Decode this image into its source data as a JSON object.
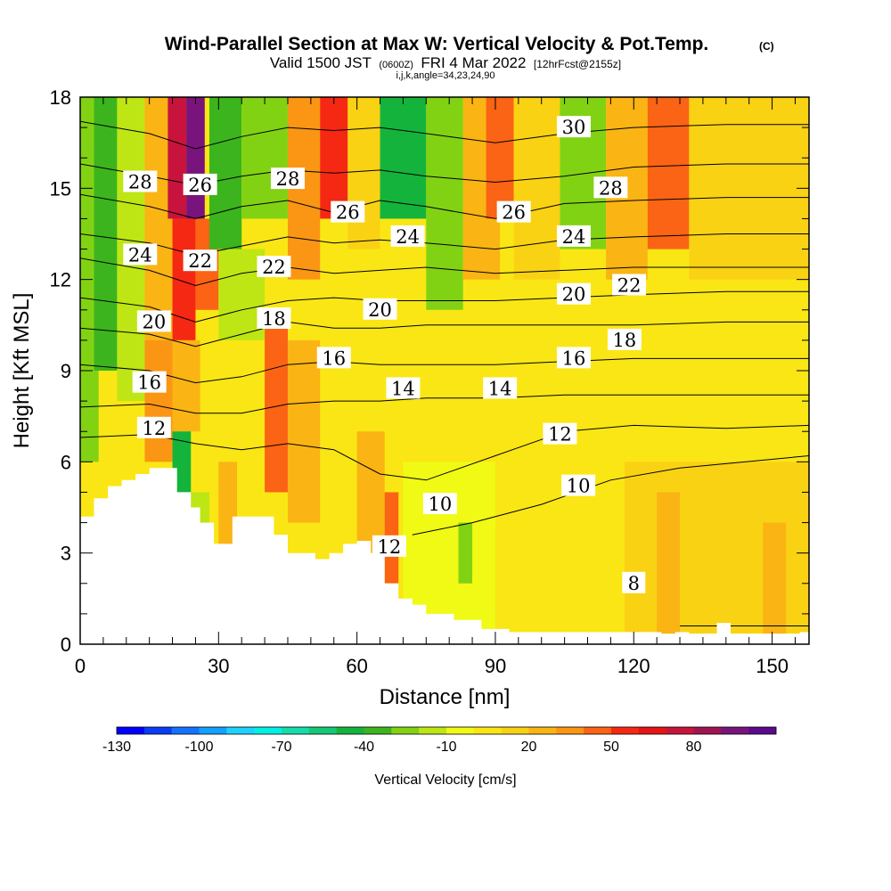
{
  "chart_data": {
    "type": "heatmap",
    "title": "Wind-Parallel Section at Max W: Vertical Velocity & Pot.Temp.",
    "title_mark": "(C)",
    "subtitle_parts": {
      "a": "Valid 1500 JST",
      "b": "(0600Z)",
      "c": "FRI 4 Mar 2022",
      "d": "[12hrFcst@2155z]"
    },
    "subtitle2": "i,j,k,angle=34,23,24,90",
    "xlabel": "Distance [nm]",
    "ylabel": "Height [Kft MSL]",
    "xlim": [
      0,
      158
    ],
    "ylim": [
      0,
      18
    ],
    "x_ticks": [
      0,
      30,
      60,
      90,
      120,
      150
    ],
    "x_tick_labels": [
      "0",
      "30",
      "60",
      "90",
      "120",
      "150"
    ],
    "y_ticks": [
      0,
      3,
      6,
      9,
      12,
      15,
      18
    ],
    "y_tick_labels": [
      "0",
      "3",
      "6",
      "9",
      "12",
      "15",
      "18"
    ],
    "colorbar": {
      "label": "Vertical Velocity [cm/s]",
      "levels": [
        -130,
        -120,
        -110,
        -100,
        -90,
        -80,
        -70,
        -60,
        -50,
        -40,
        -30,
        -20,
        -10,
        0,
        10,
        20,
        30,
        40,
        50,
        60,
        70,
        80,
        90,
        100
      ],
      "tick_values": [
        -130,
        -100,
        -70,
        -40,
        -10,
        20,
        50,
        80
      ],
      "tick_labels": [
        "-130",
        "-100",
        "-70",
        "-40",
        "-10",
        "20",
        "50",
        "80"
      ],
      "colors": [
        "#0000ff",
        "#0a3cf5",
        "#1472ff",
        "#14a0ff",
        "#1ed2ff",
        "#00f0e6",
        "#14dcaa",
        "#14c878",
        "#14b43c",
        "#3cb41e",
        "#82d214",
        "#bee614",
        "#f0fa14",
        "#fae614",
        "#fad214",
        "#fab414",
        "#fa9614",
        "#fa6414",
        "#f52814",
        "#e61414",
        "#c8143c",
        "#a01450",
        "#78147c",
        "#5a0a8c"
      ]
    },
    "terrain_profile": {
      "x": [
        0,
        3,
        3,
        6,
        6,
        9,
        9,
        12,
        12,
        15,
        15,
        21,
        21,
        24,
        24,
        26,
        26,
        29,
        29,
        33,
        33,
        42,
        42,
        45,
        45,
        51,
        51,
        54,
        54,
        57,
        57,
        60,
        60,
        63,
        63,
        66,
        66,
        69,
        69,
        72,
        72,
        75,
        75,
        81,
        81,
        87,
        87,
        93,
        93,
        126,
        126,
        129,
        129,
        132,
        132,
        138,
        138,
        141,
        141,
        156,
        156,
        158
      ],
      "height": [
        4.2,
        4.2,
        4.8,
        4.8,
        5.2,
        5.2,
        5.4,
        5.4,
        5.6,
        5.6,
        5.8,
        5.8,
        5.0,
        5.0,
        4.5,
        4.5,
        4.0,
        4.0,
        3.3,
        3.3,
        4.2,
        4.2,
        3.6,
        3.6,
        3.0,
        3.0,
        2.8,
        2.8,
        3.0,
        3.0,
        3.3,
        3.3,
        3.4,
        3.4,
        3.0,
        3.0,
        2.0,
        2.0,
        1.5,
        1.5,
        1.3,
        1.3,
        1.0,
        1.0,
        0.8,
        0.8,
        0.5,
        0.5,
        0.4,
        0.4,
        0.35,
        0.35,
        0.4,
        0.4,
        0.35,
        0.35,
        0.7,
        0.7,
        0.35,
        0.35,
        0.4,
        0.4
      ]
    },
    "velocity_cells": [
      {
        "x0": 0,
        "x1": 158,
        "y0": 0,
        "y1": 18,
        "value": 5
      },
      {
        "x0": 0,
        "x1": 4,
        "y0": 6,
        "y1": 18,
        "value": -25
      },
      {
        "x0": 3,
        "x1": 8,
        "y0": 9,
        "y1": 18,
        "value": -40
      },
      {
        "x0": 8,
        "x1": 14,
        "y0": 8,
        "y1": 18,
        "value": -15
      },
      {
        "x0": 14,
        "x1": 20,
        "y0": 10,
        "y1": 18,
        "value": 25
      },
      {
        "x0": 19,
        "x1": 23,
        "y0": 14,
        "y1": 18,
        "value": 70
      },
      {
        "x0": 20,
        "x1": 25,
        "y0": 10,
        "y1": 14,
        "value": 55
      },
      {
        "x0": 23,
        "x1": 27,
        "y0": 14,
        "y1": 18,
        "value": 90
      },
      {
        "x0": 25,
        "x1": 30,
        "y0": 11,
        "y1": 14,
        "value": 40
      },
      {
        "x0": 28,
        "x1": 35,
        "y0": 13,
        "y1": 18,
        "value": -40
      },
      {
        "x0": 35,
        "x1": 45,
        "y0": 14,
        "y1": 18,
        "value": -30
      },
      {
        "x0": 30,
        "x1": 40,
        "y0": 10,
        "y1": 13,
        "value": -20
      },
      {
        "x0": 45,
        "x1": 52,
        "y0": 12,
        "y1": 18,
        "value": 30
      },
      {
        "x0": 52,
        "x1": 58,
        "y0": 14,
        "y1": 18,
        "value": 55
      },
      {
        "x0": 58,
        "x1": 65,
        "y0": 13,
        "y1": 18,
        "value": 15
      },
      {
        "x0": 65,
        "x1": 75,
        "y0": 14,
        "y1": 18,
        "value": -45
      },
      {
        "x0": 75,
        "x1": 83,
        "y0": 11,
        "y1": 18,
        "value": -25
      },
      {
        "x0": 83,
        "x1": 91,
        "y0": 12,
        "y1": 18,
        "value": 25
      },
      {
        "x0": 88,
        "x1": 94,
        "y0": 14,
        "y1": 18,
        "value": 45
      },
      {
        "x0": 94,
        "x1": 104,
        "y0": 12,
        "y1": 18,
        "value": 15
      },
      {
        "x0": 104,
        "x1": 114,
        "y0": 13,
        "y1": 18,
        "value": -25
      },
      {
        "x0": 114,
        "x1": 123,
        "y0": 12,
        "y1": 18,
        "value": 20
      },
      {
        "x0": 123,
        "x1": 132,
        "y0": 13,
        "y1": 18,
        "value": 40
      },
      {
        "x0": 132,
        "x1": 158,
        "y0": 12,
        "y1": 18,
        "value": 15
      },
      {
        "x0": 14,
        "x1": 20,
        "y0": 6,
        "y1": 10,
        "value": 35
      },
      {
        "x0": 20,
        "x1": 26,
        "y0": 7,
        "y1": 10,
        "value": 20
      },
      {
        "x0": 20,
        "x1": 24,
        "y0": 3,
        "y1": 7,
        "value": -45
      },
      {
        "x0": 24,
        "x1": 28,
        "y0": 3,
        "y1": 5,
        "value": -20
      },
      {
        "x0": 30,
        "x1": 34,
        "y0": 3,
        "y1": 6,
        "value": 25
      },
      {
        "x0": 40,
        "x1": 45,
        "y0": 5,
        "y1": 11,
        "value": 45
      },
      {
        "x0": 45,
        "x1": 52,
        "y0": 4,
        "y1": 10,
        "value": 25
      },
      {
        "x0": 60,
        "x1": 66,
        "y0": 3,
        "y1": 7,
        "value": 20
      },
      {
        "x0": 66,
        "x1": 69,
        "y0": 2,
        "y1": 5,
        "value": 40
      },
      {
        "x0": 70,
        "x1": 90,
        "y0": 0,
        "y1": 6,
        "value": -5
      },
      {
        "x0": 82,
        "x1": 85,
        "y0": 2,
        "y1": 4,
        "value": -30
      },
      {
        "x0": 95,
        "x1": 118,
        "y0": 0,
        "y1": 5,
        "value": 0
      },
      {
        "x0": 118,
        "x1": 158,
        "y0": 0,
        "y1": 6,
        "value": 10
      },
      {
        "x0": 125,
        "x1": 130,
        "y0": 0,
        "y1": 5,
        "value": 25
      },
      {
        "x0": 148,
        "x1": 153,
        "y0": 0,
        "y1": 4,
        "value": 25
      }
    ],
    "theta_contours": [
      {
        "label": "8",
        "points": [
          [
            130,
            0.6
          ],
          [
            158,
            0.6
          ]
        ]
      },
      {
        "label": "10",
        "points": [
          [
            72,
            3.6
          ],
          [
            85,
            4.0
          ],
          [
            100,
            4.6
          ],
          [
            115,
            5.4
          ],
          [
            130,
            5.8
          ],
          [
            158,
            6.2
          ]
        ]
      },
      {
        "label": "12",
        "points": [
          [
            0,
            6.8
          ],
          [
            15,
            6.9
          ],
          [
            25,
            6.6
          ],
          [
            35,
            6.4
          ],
          [
            45,
            6.6
          ],
          [
            55,
            6.4
          ],
          [
            65,
            5.6
          ],
          [
            75,
            5.4
          ],
          [
            90,
            6.2
          ],
          [
            105,
            7.0
          ],
          [
            120,
            7.2
          ],
          [
            140,
            7.1
          ],
          [
            158,
            7.2
          ]
        ]
      },
      {
        "label": "14",
        "points": [
          [
            0,
            7.8
          ],
          [
            15,
            7.9
          ],
          [
            25,
            7.6
          ],
          [
            35,
            7.6
          ],
          [
            45,
            7.9
          ],
          [
            55,
            8.0
          ],
          [
            65,
            8.0
          ],
          [
            75,
            8.1
          ],
          [
            90,
            8.1
          ],
          [
            105,
            8.2
          ],
          [
            120,
            8.2
          ],
          [
            140,
            8.2
          ],
          [
            158,
            8.2
          ]
        ]
      },
      {
        "label": "16",
        "points": [
          [
            0,
            9.2
          ],
          [
            15,
            9.0
          ],
          [
            25,
            8.6
          ],
          [
            35,
            8.8
          ],
          [
            45,
            9.2
          ],
          [
            55,
            9.3
          ],
          [
            65,
            9.2
          ],
          [
            75,
            9.2
          ],
          [
            90,
            9.2
          ],
          [
            105,
            9.3
          ],
          [
            120,
            9.4
          ],
          [
            140,
            9.4
          ],
          [
            158,
            9.4
          ]
        ]
      },
      {
        "label": "18",
        "points": [
          [
            0,
            10.4
          ],
          [
            15,
            10.2
          ],
          [
            25,
            9.8
          ],
          [
            35,
            10.2
          ],
          [
            45,
            10.6
          ],
          [
            55,
            10.4
          ],
          [
            65,
            10.4
          ],
          [
            75,
            10.5
          ],
          [
            90,
            10.5
          ],
          [
            105,
            10.5
          ],
          [
            120,
            10.5
          ],
          [
            140,
            10.6
          ],
          [
            158,
            10.6
          ]
        ]
      },
      {
        "label": "20",
        "points": [
          [
            0,
            11.4
          ],
          [
            15,
            11.1
          ],
          [
            25,
            10.6
          ],
          [
            35,
            11.0
          ],
          [
            45,
            11.3
          ],
          [
            55,
            11.4
          ],
          [
            65,
            11.3
          ],
          [
            75,
            11.3
          ],
          [
            90,
            11.3
          ],
          [
            105,
            11.4
          ],
          [
            120,
            11.5
          ],
          [
            140,
            11.6
          ],
          [
            158,
            11.6
          ]
        ]
      },
      {
        "label": "22",
        "points": [
          [
            0,
            12.7
          ],
          [
            15,
            12.3
          ],
          [
            25,
            11.8
          ],
          [
            35,
            12.2
          ],
          [
            45,
            12.4
          ],
          [
            55,
            12.2
          ],
          [
            65,
            12.3
          ],
          [
            75,
            12.4
          ],
          [
            90,
            12.2
          ],
          [
            105,
            12.3
          ],
          [
            120,
            12.4
          ],
          [
            140,
            12.4
          ],
          [
            158,
            12.4
          ]
        ]
      },
      {
        "label": "24",
        "points": [
          [
            0,
            13.5
          ],
          [
            15,
            13.2
          ],
          [
            25,
            12.8
          ],
          [
            35,
            13.1
          ],
          [
            45,
            13.4
          ],
          [
            55,
            13.2
          ],
          [
            65,
            13.3
          ],
          [
            75,
            13.2
          ],
          [
            90,
            13.0
          ],
          [
            105,
            13.3
          ],
          [
            120,
            13.4
          ],
          [
            140,
            13.5
          ],
          [
            158,
            13.5
          ]
        ]
      },
      {
        "label": "26",
        "points": [
          [
            0,
            14.8
          ],
          [
            15,
            14.4
          ],
          [
            25,
            14.0
          ],
          [
            35,
            14.4
          ],
          [
            45,
            14.6
          ],
          [
            55,
            14.2
          ],
          [
            65,
            14.6
          ],
          [
            75,
            14.4
          ],
          [
            90,
            14.0
          ],
          [
            105,
            14.5
          ],
          [
            120,
            14.6
          ],
          [
            140,
            14.7
          ],
          [
            158,
            14.7
          ]
        ]
      },
      {
        "label": "28",
        "points": [
          [
            0,
            15.8
          ],
          [
            15,
            15.4
          ],
          [
            25,
            15.1
          ],
          [
            35,
            15.4
          ],
          [
            45,
            15.6
          ],
          [
            55,
            15.5
          ],
          [
            65,
            15.6
          ],
          [
            75,
            15.4
          ],
          [
            90,
            15.2
          ],
          [
            105,
            15.4
          ],
          [
            120,
            15.7
          ],
          [
            140,
            15.8
          ],
          [
            158,
            15.8
          ]
        ]
      },
      {
        "label": "30",
        "points": [
          [
            0,
            17.2
          ],
          [
            15,
            16.8
          ],
          [
            25,
            16.3
          ],
          [
            35,
            16.7
          ],
          [
            45,
            17.0
          ],
          [
            55,
            16.9
          ],
          [
            65,
            17.0
          ],
          [
            75,
            16.8
          ],
          [
            90,
            16.5
          ],
          [
            105,
            16.8
          ],
          [
            120,
            17.0
          ],
          [
            140,
            17.1
          ],
          [
            158,
            17.1
          ]
        ]
      }
    ],
    "contour_labels": [
      {
        "text": "28",
        "x": 13,
        "y": 15.2
      },
      {
        "text": "24",
        "x": 13,
        "y": 12.8
      },
      {
        "text": "20",
        "x": 16,
        "y": 10.6
      },
      {
        "text": "16",
        "x": 15,
        "y": 8.6
      },
      {
        "text": "12",
        "x": 16,
        "y": 7.1
      },
      {
        "text": "26",
        "x": 26,
        "y": 15.1
      },
      {
        "text": "22",
        "x": 26,
        "y": 12.6
      },
      {
        "text": "28",
        "x": 45,
        "y": 15.3
      },
      {
        "text": "22",
        "x": 42,
        "y": 12.4
      },
      {
        "text": "18",
        "x": 42,
        "y": 10.7
      },
      {
        "text": "26",
        "x": 58,
        "y": 14.2
      },
      {
        "text": "16",
        "x": 55,
        "y": 9.4
      },
      {
        "text": "24",
        "x": 71,
        "y": 13.4
      },
      {
        "text": "20",
        "x": 65,
        "y": 11.0
      },
      {
        "text": "14",
        "x": 70,
        "y": 8.4
      },
      {
        "text": "12",
        "x": 67,
        "y": 3.2
      },
      {
        "text": "10",
        "x": 78,
        "y": 4.6
      },
      {
        "text": "26",
        "x": 94,
        "y": 14.2
      },
      {
        "text": "14",
        "x": 91,
        "y": 8.4
      },
      {
        "text": "30",
        "x": 107,
        "y": 17.0
      },
      {
        "text": "28",
        "x": 115,
        "y": 15.0
      },
      {
        "text": "24",
        "x": 107,
        "y": 13.4
      },
      {
        "text": "22",
        "x": 119,
        "y": 11.8
      },
      {
        "text": "20",
        "x": 107,
        "y": 11.5
      },
      {
        "text": "18",
        "x": 118,
        "y": 10.0
      },
      {
        "text": "16",
        "x": 107,
        "y": 9.4
      },
      {
        "text": "12",
        "x": 104,
        "y": 6.9
      },
      {
        "text": "10",
        "x": 108,
        "y": 5.2
      },
      {
        "text": "8",
        "x": 120,
        "y": 2.0
      }
    ]
  }
}
